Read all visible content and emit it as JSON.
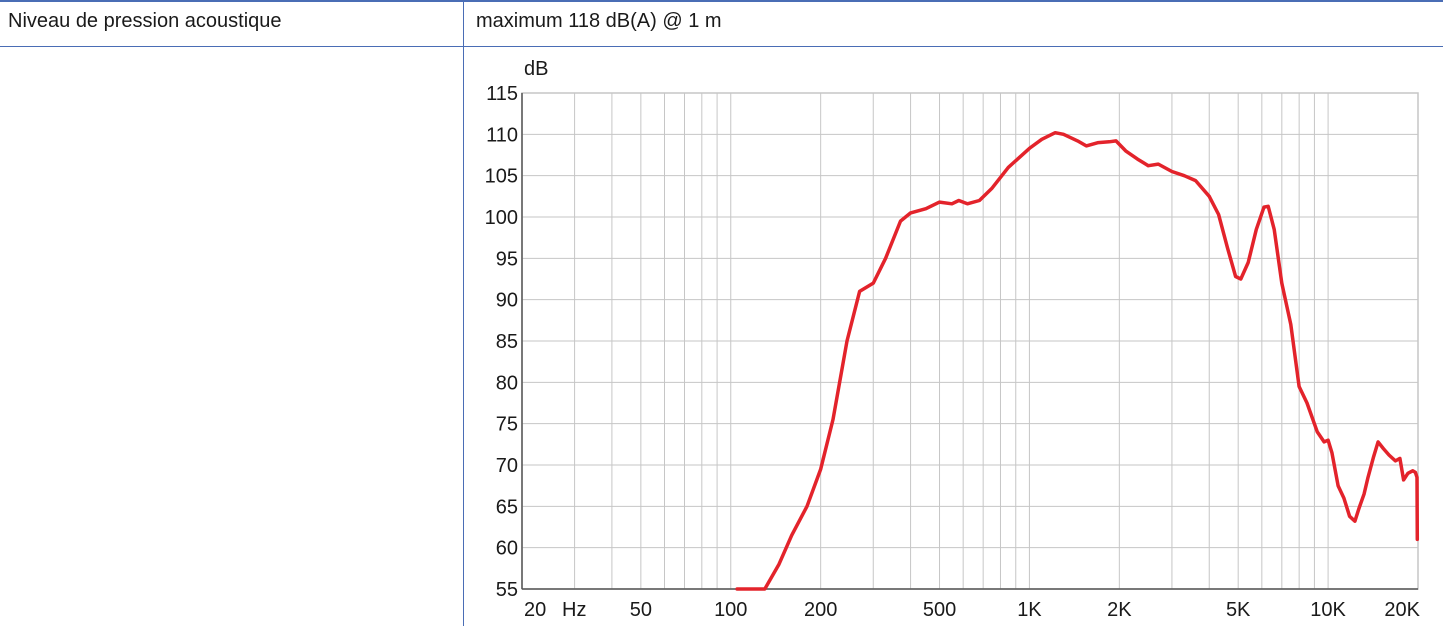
{
  "spec_row": {
    "label": "Niveau de pression acoustique",
    "value": "maximum 118 dB(A) @ 1 m"
  },
  "colors": {
    "rule": "#4a6db5",
    "grid": "#c6c6c6",
    "curve": "#e3232b"
  },
  "chart_data": {
    "type": "line",
    "ylabel": "dB",
    "x_scale": "log",
    "xlim": [
      20,
      20000
    ],
    "ylim": [
      55,
      115
    ],
    "grid": true,
    "x_ticks": [
      {
        "value": 20,
        "label": "20"
      },
      {
        "value": 50,
        "label": "50"
      },
      {
        "value": 100,
        "label": "100"
      },
      {
        "value": 200,
        "label": "200"
      },
      {
        "value": 500,
        "label": "500"
      },
      {
        "value": 1000,
        "label": "1K"
      },
      {
        "value": 2000,
        "label": "2K"
      },
      {
        "value": 5000,
        "label": "5K"
      },
      {
        "value": 10000,
        "label": "10K"
      },
      {
        "value": 20000,
        "label": "20K"
      }
    ],
    "x_unit_label": "Hz",
    "y_ticks": [
      115,
      110,
      105,
      100,
      95,
      90,
      85,
      80,
      75,
      70,
      65,
      60,
      55
    ],
    "series": [
      {
        "points": [
          [
            105,
            55
          ],
          [
            130,
            55
          ],
          [
            145,
            58
          ],
          [
            160,
            61.5
          ],
          [
            180,
            65
          ],
          [
            200,
            69.5
          ],
          [
            220,
            75.5
          ],
          [
            245,
            85
          ],
          [
            270,
            91
          ],
          [
            300,
            92
          ],
          [
            330,
            95
          ],
          [
            370,
            99.5
          ],
          [
            400,
            100.5
          ],
          [
            450,
            101
          ],
          [
            500,
            101.8
          ],
          [
            550,
            101.6
          ],
          [
            580,
            102
          ],
          [
            620,
            101.6
          ],
          [
            680,
            102
          ],
          [
            750,
            103.5
          ],
          [
            850,
            106
          ],
          [
            1000,
            108.3
          ],
          [
            1100,
            109.4
          ],
          [
            1220,
            110.2
          ],
          [
            1300,
            110
          ],
          [
            1450,
            109.2
          ],
          [
            1550,
            108.6
          ],
          [
            1700,
            109
          ],
          [
            1850,
            109.1
          ],
          [
            1950,
            109.2
          ],
          [
            2100,
            108
          ],
          [
            2300,
            107
          ],
          [
            2500,
            106.2
          ],
          [
            2700,
            106.4
          ],
          [
            3000,
            105.5
          ],
          [
            3300,
            105
          ],
          [
            3600,
            104.4
          ],
          [
            4000,
            102.5
          ],
          [
            4300,
            100.3
          ],
          [
            4600,
            96.3
          ],
          [
            4900,
            92.8
          ],
          [
            5100,
            92.5
          ],
          [
            5400,
            94.5
          ],
          [
            5750,
            98.5
          ],
          [
            6100,
            101.2
          ],
          [
            6300,
            101.3
          ],
          [
            6600,
            98.5
          ],
          [
            7000,
            92
          ],
          [
            7500,
            87
          ],
          [
            8000,
            79.5
          ],
          [
            8500,
            77.5
          ],
          [
            9200,
            74
          ],
          [
            9700,
            72.8
          ],
          [
            10000,
            73
          ],
          [
            10300,
            71.5
          ],
          [
            10800,
            67.5
          ],
          [
            11300,
            66
          ],
          [
            11800,
            63.8
          ],
          [
            12300,
            63.2
          ],
          [
            12700,
            64.8
          ],
          [
            13200,
            66.5
          ],
          [
            13600,
            68.5
          ],
          [
            14200,
            71
          ],
          [
            14700,
            72.8
          ],
          [
            15300,
            72
          ],
          [
            16000,
            71.2
          ],
          [
            16800,
            70.5
          ],
          [
            17400,
            70.8
          ],
          [
            17900,
            68.2
          ],
          [
            18500,
            69
          ],
          [
            19200,
            69.3
          ],
          [
            19600,
            69.1
          ],
          [
            19850,
            68.5
          ],
          [
            19900,
            61
          ]
        ]
      }
    ]
  }
}
